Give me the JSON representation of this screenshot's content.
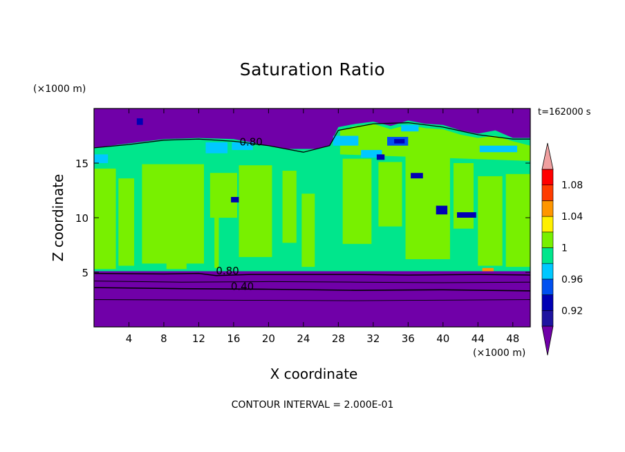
{
  "chart_data": {
    "type": "heatmap",
    "title": "Saturation Ratio",
    "xlabel": "X coordinate",
    "ylabel": "Z coordinate",
    "x_unit": "(×1000 m)",
    "y_unit": "(×1000 m)",
    "time_label": "t=162000 s",
    "footer": "CONTOUR INTERVAL = 2.000E-01",
    "xlim": [
      0,
      50
    ],
    "ylim": [
      0,
      20
    ],
    "x_ticks": [
      4,
      8,
      12,
      16,
      20,
      24,
      28,
      32,
      36,
      40,
      44,
      48
    ],
    "y_ticks": [
      5,
      10,
      15
    ],
    "colorbar": {
      "levels": [
        0.9,
        0.92,
        0.94,
        0.96,
        0.98,
        1.0,
        1.02,
        1.04,
        1.06,
        1.08,
        1.1
      ],
      "labels": [
        "0.92",
        "0.96",
        "1",
        "1.04",
        "1.08"
      ],
      "label_values": [
        0.92,
        0.96,
        1.0,
        1.04,
        1.08
      ],
      "colors": [
        "#7000a8",
        "#1e14a0",
        "#0000b4",
        "#0050f0",
        "#00c8ff",
        "#00e68c",
        "#78f000",
        "#fff000",
        "#ff9600",
        "#ff3c00",
        "#ff0000",
        "#f0a0a0"
      ]
    },
    "contour_labels": [
      {
        "text": "0.80",
        "x": 18.0,
        "z": 16.6
      },
      {
        "text": "0.80",
        "x": 15.3,
        "z": 4.8
      },
      {
        "text": "0.40",
        "x": 17.0,
        "z": 3.4
      }
    ],
    "regions": {
      "upper_dry_layer_z": [
        16.5,
        20
      ],
      "moist_layer_z": [
        5,
        16
      ],
      "lower_dry_layer_z": [
        0,
        5
      ]
    }
  }
}
